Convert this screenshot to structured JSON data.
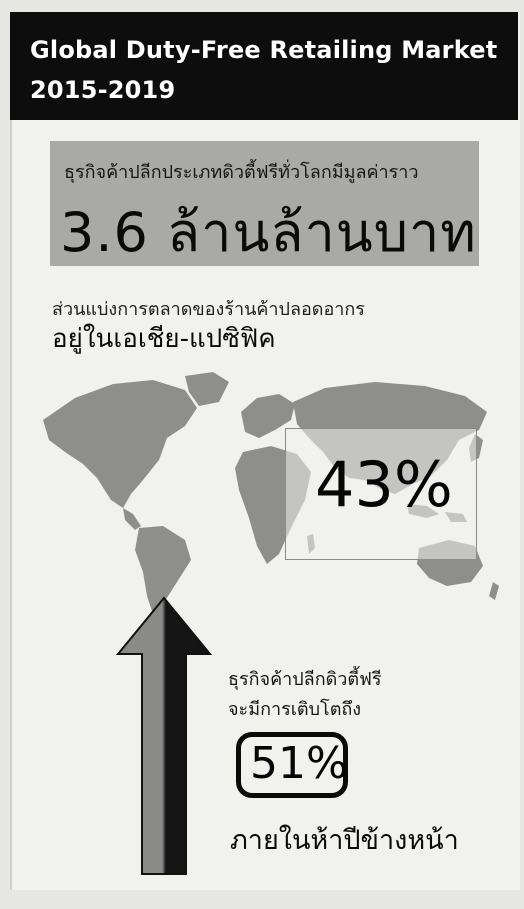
{
  "header": {
    "title_line1": "Global Duty-Free Retailing Market",
    "title_line2": "2015-2019"
  },
  "market_value": {
    "caption": "ธุรกิจค้าปลีกประเภทดิวตี้ฟรีทั่วโลกมีมูลค่าราว",
    "value": "3.6 ล้านล้านบาท"
  },
  "market_share": {
    "caption": "ส่วนแบ่งการตลาดของร้านค้าปลอดอากร",
    "region": "อยู่ในเอเชีย-แปซิฟิค",
    "percent": "43%"
  },
  "growth": {
    "caption_line1": "ธุรกิจค้าปลีกดิวตี้ฟรี",
    "caption_line2": "จะมีการเติบโตถึง",
    "percent": "51%",
    "period": "ภายในห้าปีข้างหน้า"
  },
  "colors": {
    "header_bg": "#0d0d0d",
    "value_box": "#a9a9a7",
    "map_land": "#8e8e8c",
    "arrow_light": "#8a8a88",
    "arrow_dark": "#151515"
  },
  "icons": {
    "map": "world-map-illustration",
    "arrow": "up-arrow-icon"
  }
}
